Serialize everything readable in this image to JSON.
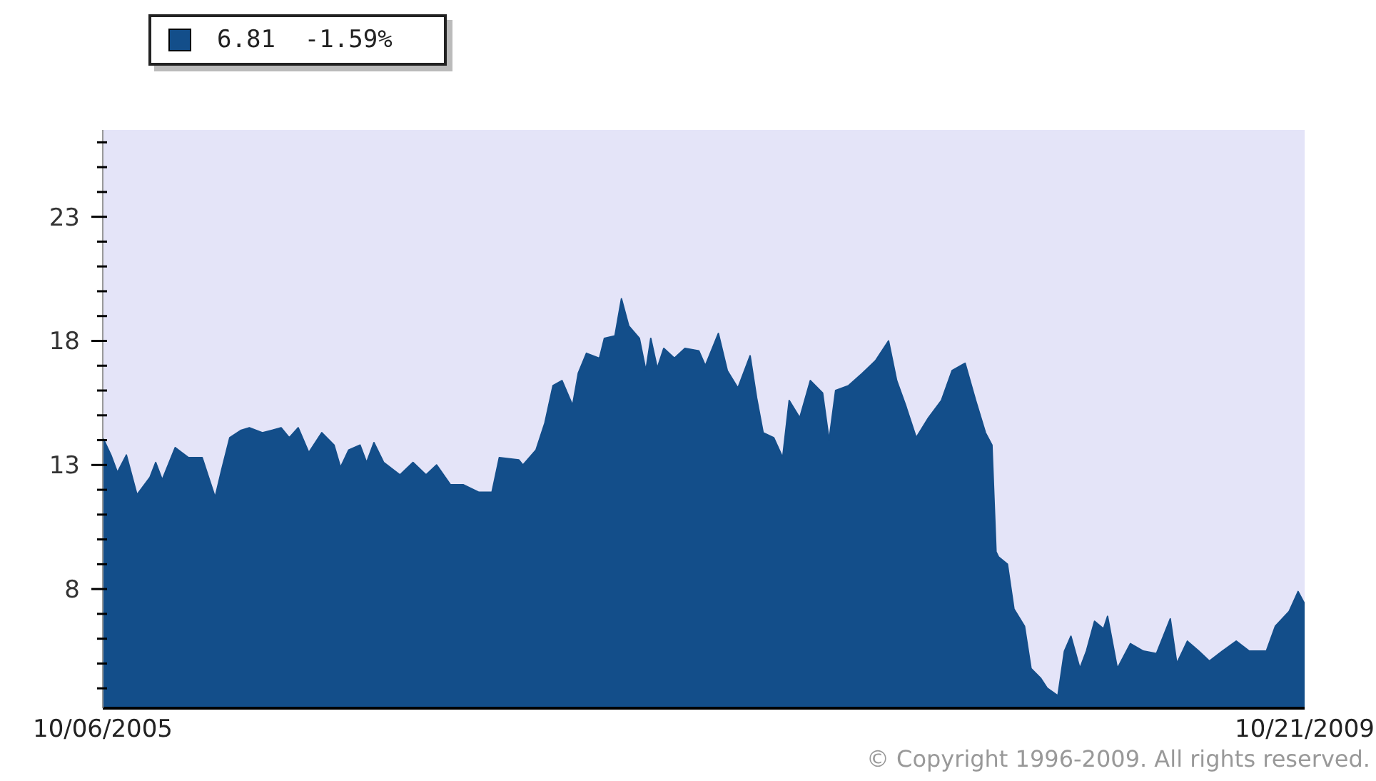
{
  "chart_data": {
    "type": "area",
    "legend": "top left",
    "grid": false,
    "annotations": [
      "© Copyright 1996-2009. All rights reserved."
    ],
    "xlim": [
      "2005-10-06",
      "2009-10-21"
    ],
    "xticks": [
      {
        "value": "2005-10-06",
        "label": "10/06/2005"
      },
      {
        "value": "2009-10-21",
        "label": "10/21/2009"
      }
    ],
    "ylim": [
      3.2,
      26.5
    ],
    "yticks": [
      {
        "value": 4,
        "label": null
      },
      {
        "value": 5,
        "label": null
      },
      {
        "value": 6,
        "label": null
      },
      {
        "value": 7,
        "label": null
      },
      8,
      {
        "value": 9,
        "label": null
      },
      {
        "value": 10,
        "label": null
      },
      {
        "value": 11,
        "label": null
      },
      {
        "value": 12,
        "label": null
      },
      13,
      {
        "value": 14,
        "label": null
      },
      {
        "value": 15,
        "label": null
      },
      {
        "value": 16,
        "label": null
      },
      {
        "value": 17,
        "label": null
      },
      18,
      {
        "value": 19,
        "label": null
      },
      {
        "value": 20,
        "label": null
      },
      {
        "value": 21,
        "label": null
      },
      {
        "value": 22,
        "label": null
      },
      23,
      {
        "value": 24,
        "label": null
      },
      {
        "value": 25,
        "label": null
      },
      {
        "value": 26,
        "label": null
      }
    ],
    "x": [
      "2005-10-06",
      "2005-10-16",
      "2005-10-24",
      "2005-11-04",
      "2005-11-17",
      "2005-12-03",
      "2005-12-10",
      "2005-12-18",
      "2006-01-03",
      "2006-01-19",
      "2006-02-05",
      "2006-02-13",
      "2006-02-21",
      "2006-03-01",
      "2006-03-11",
      "2006-03-25",
      "2006-04-04",
      "2006-04-20",
      "2006-05-02",
      "2006-05-13",
      "2006-05-23",
      "2006-06-03",
      "2006-06-16",
      "2006-07-02",
      "2006-07-17",
      "2006-07-25",
      "2006-08-04",
      "2006-08-18",
      "2006-08-26",
      "2006-09-04",
      "2006-09-16",
      "2006-10-06",
      "2006-10-22",
      "2006-11-07",
      "2006-11-20",
      "2006-12-07",
      "2006-12-23",
      "2007-01-11",
      "2007-01-27",
      "2007-02-05",
      "2007-03-01",
      "2007-03-06",
      "2007-03-22",
      "2007-04-02",
      "2007-04-12",
      "2007-04-23",
      "2007-05-06",
      "2007-05-13",
      "2007-05-23",
      "2007-06-08",
      "2007-06-14",
      "2007-06-27",
      "2007-07-05",
      "2007-07-14",
      "2007-07-27",
      "2007-08-04",
      "2007-08-10",
      "2007-08-18",
      "2007-08-26",
      "2007-09-08",
      "2007-09-21",
      "2007-10-08",
      "2007-10-16",
      "2007-11-01",
      "2007-11-12",
      "2007-11-25",
      "2007-12-10",
      "2007-12-18",
      "2007-12-26",
      "2008-01-08",
      "2008-01-19",
      "2008-01-27",
      "2008-02-09",
      "2008-02-22",
      "2008-03-08",
      "2008-03-16",
      "2008-03-24",
      "2008-04-09",
      "2008-04-26",
      "2008-05-12",
      "2008-05-28",
      "2008-06-07",
      "2008-06-18",
      "2008-07-01",
      "2008-07-16",
      "2008-08-01",
      "2008-08-14",
      "2008-08-30",
      "2008-09-12",
      "2008-09-24",
      "2008-10-02",
      "2008-10-07",
      "2008-10-10",
      "2008-10-21",
      "2008-10-29",
      "2008-11-11",
      "2008-11-19",
      "2008-12-01",
      "2008-12-09",
      "2008-12-22",
      "2008-12-30",
      "2009-01-07",
      "2009-01-18",
      "2009-01-26",
      "2009-02-05",
      "2009-02-16",
      "2009-02-21",
      "2009-03-05",
      "2009-03-21",
      "2009-04-06",
      "2009-04-22",
      "2009-05-09",
      "2009-05-17",
      "2009-05-30",
      "2009-06-13",
      "2009-06-26",
      "2009-07-12",
      "2009-07-29",
      "2009-08-14",
      "2009-09-04",
      "2009-09-15",
      "2009-10-02",
      "2009-10-13",
      "2009-10-21"
    ],
    "series": [
      {
        "name": "6.81  -1.59%",
        "color": "#134e8a",
        "values": [
          14.1,
          13.4,
          12.7,
          13.4,
          11.8,
          12.5,
          13.1,
          12.4,
          13.7,
          13.3,
          13.3,
          12.5,
          11.7,
          12.8,
          14.1,
          14.4,
          14.5,
          14.3,
          14.4,
          14.5,
          14.1,
          14.5,
          13.5,
          14.3,
          13.8,
          12.9,
          13.6,
          13.8,
          13.1,
          13.9,
          13.1,
          12.6,
          13.1,
          12.6,
          13.0,
          12.2,
          12.2,
          11.9,
          11.9,
          13.3,
          13.2,
          13.0,
          13.6,
          14.7,
          16.2,
          16.4,
          15.4,
          16.7,
          17.5,
          17.3,
          18.1,
          18.2,
          19.7,
          18.6,
          18.1,
          16.8,
          18.1,
          16.9,
          17.7,
          17.3,
          17.7,
          17.6,
          17.0,
          18.3,
          16.8,
          16.1,
          17.4,
          15.7,
          14.3,
          14.1,
          13.3,
          15.6,
          14.9,
          16.4,
          15.9,
          14.0,
          16.0,
          16.2,
          16.7,
          17.2,
          18.0,
          16.4,
          15.4,
          14.1,
          14.9,
          15.6,
          16.8,
          17.1,
          15.6,
          14.3,
          13.8,
          9.5,
          9.3,
          9.0,
          7.2,
          6.5,
          4.8,
          4.4,
          4.0,
          3.7,
          5.5,
          6.1,
          4.8,
          5.5,
          6.7,
          6.4,
          6.9,
          4.8,
          5.8,
          5.5,
          5.4,
          6.8,
          5.0,
          5.9,
          5.5,
          5.1,
          5.5,
          5.9,
          5.5,
          5.5,
          6.5,
          7.1,
          7.9,
          7.4
        ]
      }
    ]
  }
}
